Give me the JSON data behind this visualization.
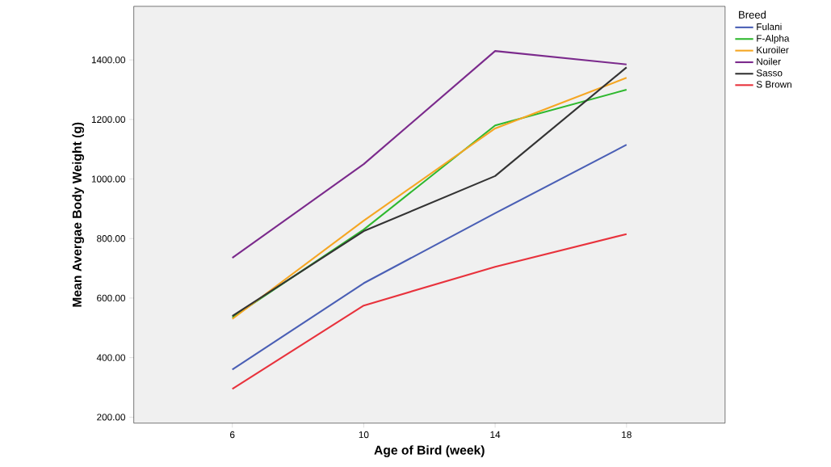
{
  "chart_data": {
    "type": "line",
    "xlabel": "Age of Bird (week)",
    "ylabel": "Mean Avergae Body Weight (g)",
    "legend_title": "Breed",
    "legend": "top right",
    "marker": "none",
    "grid": false,
    "x": [
      6,
      10,
      14,
      18
    ],
    "xlim": [
      3,
      21
    ],
    "xticks": [
      6,
      10,
      14,
      18
    ],
    "ylim": [
      180,
      1580
    ],
    "yticks": [
      {
        "value": 200,
        "label": "200.00"
      },
      {
        "value": 400,
        "label": "400.00"
      },
      {
        "value": 600,
        "label": "600.00"
      },
      {
        "value": 800,
        "label": "800.00"
      },
      {
        "value": 1000,
        "label": "1000.00"
      },
      {
        "value": 1200,
        "label": "1200.00"
      },
      {
        "value": 1400,
        "label": "1400.00"
      }
    ],
    "series": [
      {
        "name": "Fulani",
        "color": "#4a5fb5",
        "values": [
          360,
          650,
          885,
          1115
        ]
      },
      {
        "name": "F-Alpha",
        "color": "#2eb82e",
        "values": [
          535,
          830,
          1180,
          1300
        ]
      },
      {
        "name": "Kuroiler",
        "color": "#f5a623",
        "values": [
          530,
          860,
          1170,
          1340
        ]
      },
      {
        "name": "Noiler",
        "color": "#7b2a8c",
        "values": [
          735,
          1050,
          1430,
          1385
        ]
      },
      {
        "name": "Sasso",
        "color": "#333333",
        "values": [
          540,
          825,
          1010,
          1375
        ]
      },
      {
        "name": "S Brown",
        "color": "#e8323c",
        "values": [
          295,
          575,
          705,
          815
        ]
      }
    ]
  }
}
